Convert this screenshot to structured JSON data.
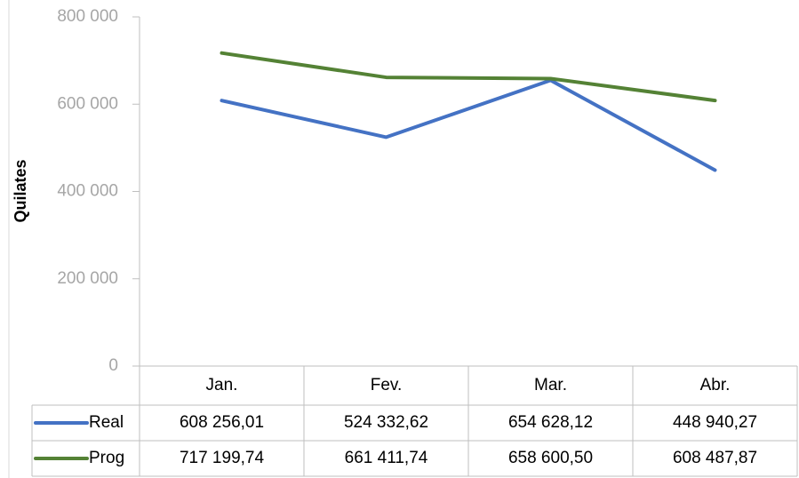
{
  "chart_data": {
    "type": "line",
    "y_axis_label": "Quilates",
    "categories": [
      "Jan.",
      "Fev.",
      "Mar.",
      "Abr."
    ],
    "series": [
      {
        "name": "Real",
        "color": "#4472c4",
        "values": [
          608256.01,
          524332.62,
          654628.12,
          448940.27
        ],
        "value_labels": [
          "608 256,01",
          "524 332,62",
          "654 628,12",
          "448 940,27"
        ]
      },
      {
        "name": "Prog",
        "color": "#548235",
        "values": [
          717199.74,
          661411.74,
          658600.5,
          608487.87
        ],
        "value_labels": [
          "717 199,74",
          "661 411,74",
          "658 600,50",
          "608 487,87"
        ]
      }
    ],
    "ylim": [
      0,
      800000
    ],
    "yticks": [
      {
        "value": 0,
        "label": "0"
      },
      {
        "value": 200000,
        "label": "200 000"
      },
      {
        "value": 400000,
        "label": "400 000"
      },
      {
        "value": 600000,
        "label": "600 000"
      },
      {
        "value": 800000,
        "label": "800 000"
      }
    ],
    "grid": false,
    "data_table": true
  }
}
